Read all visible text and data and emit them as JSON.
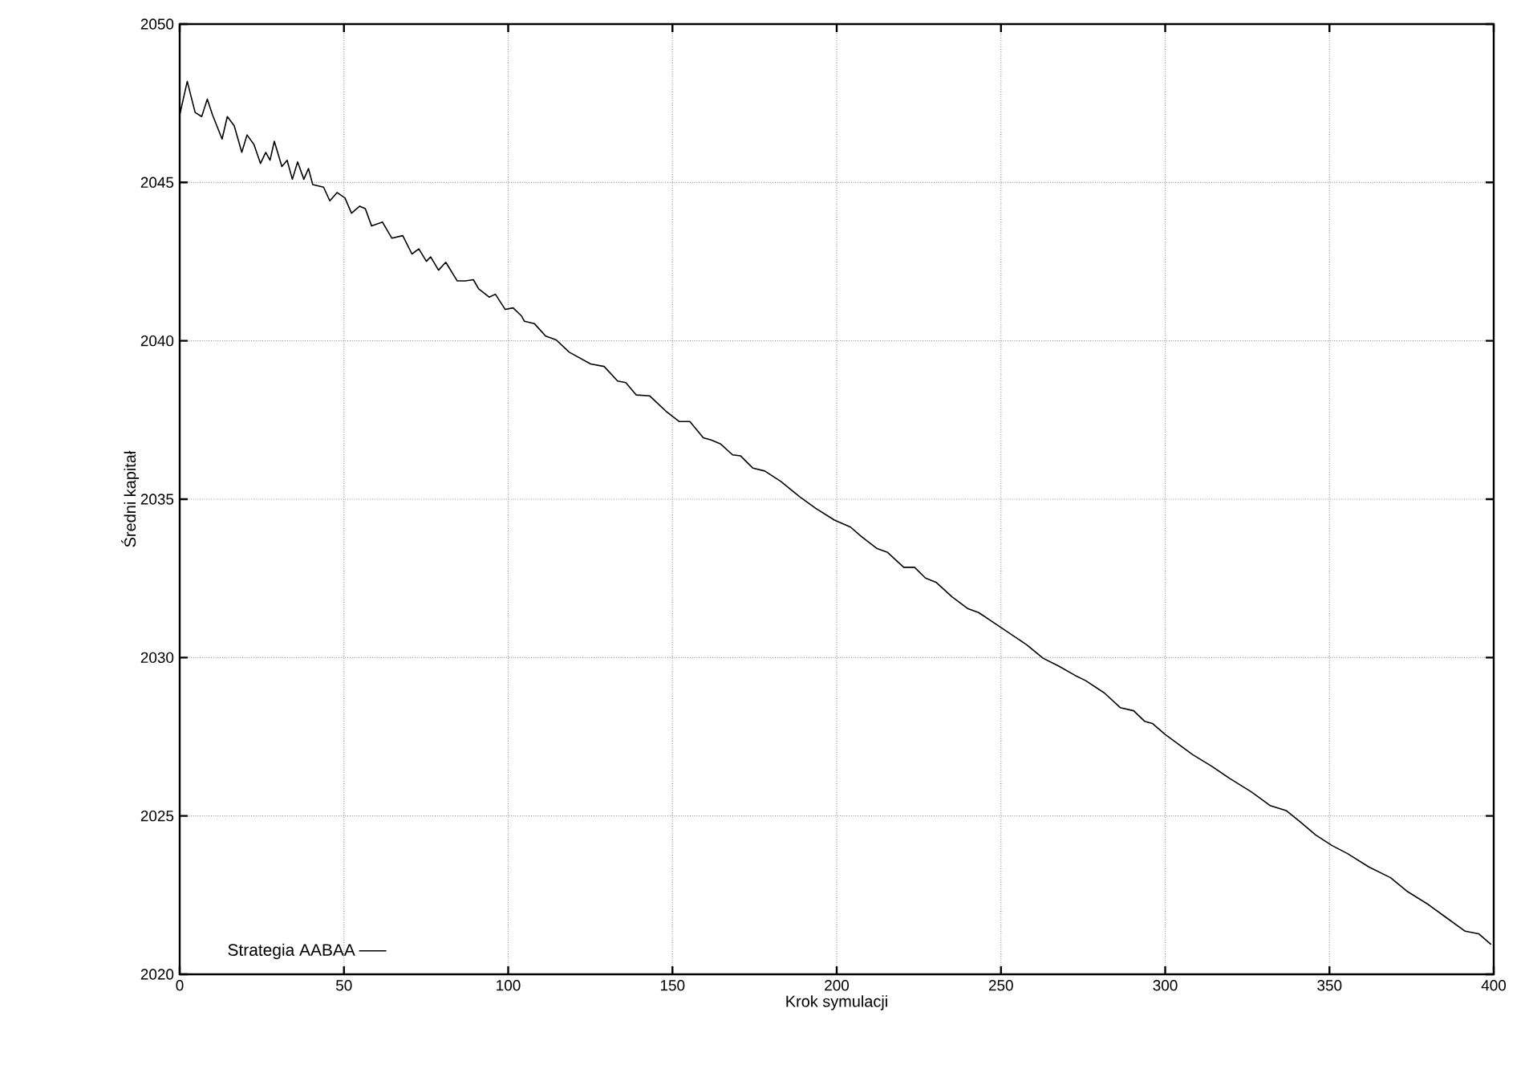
{
  "chart_data": {
    "type": "line",
    "xlabel": "Krok symulacji",
    "ylabel": "Średni kapitał",
    "xlim": [
      0,
      400
    ],
    "ylim": [
      2020,
      2050
    ],
    "xticks": [
      0,
      50,
      100,
      150,
      200,
      250,
      300,
      350,
      400
    ],
    "yticks": [
      2020,
      2025,
      2030,
      2035,
      2040,
      2045,
      2050
    ],
    "grid": true,
    "legend": "bottom left",
    "marker": "none",
    "line_style": "solid",
    "series": [
      {
        "name": "Strategia AABAA",
        "color": "#000000",
        "x": [
          0,
          2.3,
          4.7,
          6.7,
          8.4,
          10,
          12.9,
          14.5,
          16.6,
          18.9,
          20.5,
          22.6,
          24.6,
          26.2,
          27.5,
          28.8,
          31.1,
          32.7,
          34.3,
          35.9,
          37.8,
          39.2,
          40.5,
          43.8,
          45.7,
          47.9,
          50.3,
          52.3,
          54.8,
          56.5,
          58.4,
          61.7,
          64.6,
          67.9,
          70.7,
          72.8,
          75.1,
          76.4,
          78.8,
          81,
          84.5,
          87,
          89.4,
          91,
          94.2,
          96.1,
          99.1,
          101.5,
          104,
          104.9,
          108,
          111.4,
          114.6,
          118.6,
          125.1,
          129.2,
          133.3,
          135.8,
          139,
          143.1,
          148,
          152.1,
          155.3,
          159.4,
          161.8,
          164.7,
          168.3,
          170.7,
          174.5,
          178.1,
          183,
          188.7,
          193.6,
          199.3,
          204.2,
          207.4,
          212.3,
          215.5,
          220.4,
          223.7,
          227,
          230.2,
          235.1,
          240,
          243.2,
          248.1,
          253,
          257.9,
          262.8,
          267.6,
          272.5,
          275.8,
          281.5,
          286.3,
          290.4,
          293.7,
          296.1,
          299.9,
          308.3,
          314.1,
          319.7,
          326.2,
          331.9,
          336.8,
          340.9,
          345.8,
          350.7,
          355.5,
          362,
          368.6,
          373.5,
          380,
          385.7,
          391.3,
          395.4,
          399.2
        ],
        "values": [
          2047.13,
          2048.19,
          2047.21,
          2047.08,
          2047.63,
          2047.13,
          2046.37,
          2047.08,
          2046.79,
          2045.95,
          2046.5,
          2046.2,
          2045.6,
          2045.95,
          2045.7,
          2046.3,
          2045.5,
          2045.7,
          2045.1,
          2045.65,
          2045.1,
          2045.44,
          2044.93,
          2044.85,
          2044.42,
          2044.68,
          2044.51,
          2044.03,
          2044.25,
          2044.17,
          2043.63,
          2043.75,
          2043.24,
          2043.32,
          2042.74,
          2042.9,
          2042.51,
          2042.65,
          2042.23,
          2042.48,
          2041.89,
          2041.89,
          2041.93,
          2041.64,
          2041.38,
          2041.47,
          2040.99,
          2041.04,
          2040.79,
          2040.62,
          2040.54,
          2040.15,
          2040.03,
          2039.64,
          2039.27,
          2039.19,
          2038.73,
          2038.68,
          2038.29,
          2038.26,
          2037.78,
          2037.45,
          2037.45,
          2036.94,
          2036.87,
          2036.74,
          2036.4,
          2036.37,
          2035.98,
          2035.89,
          2035.56,
          2035.08,
          2034.71,
          2034.34,
          2034.12,
          2033.83,
          2033.44,
          2033.32,
          2032.85,
          2032.85,
          2032.51,
          2032.38,
          2031.92,
          2031.54,
          2031.42,
          2031.08,
          2030.74,
          2030.4,
          2029.98,
          2029.73,
          2029.44,
          2029.27,
          2028.88,
          2028.42,
          2028.32,
          2027.99,
          2027.92,
          2027.58,
          2026.94,
          2026.57,
          2026.18,
          2025.76,
          2025.33,
          2025.17,
          2024.83,
          2024.4,
          2024.07,
          2023.81,
          2023.39,
          2023.05,
          2022.63,
          2022.21,
          2021.78,
          2021.36,
          2021.28,
          2020.94
        ]
      }
    ]
  }
}
